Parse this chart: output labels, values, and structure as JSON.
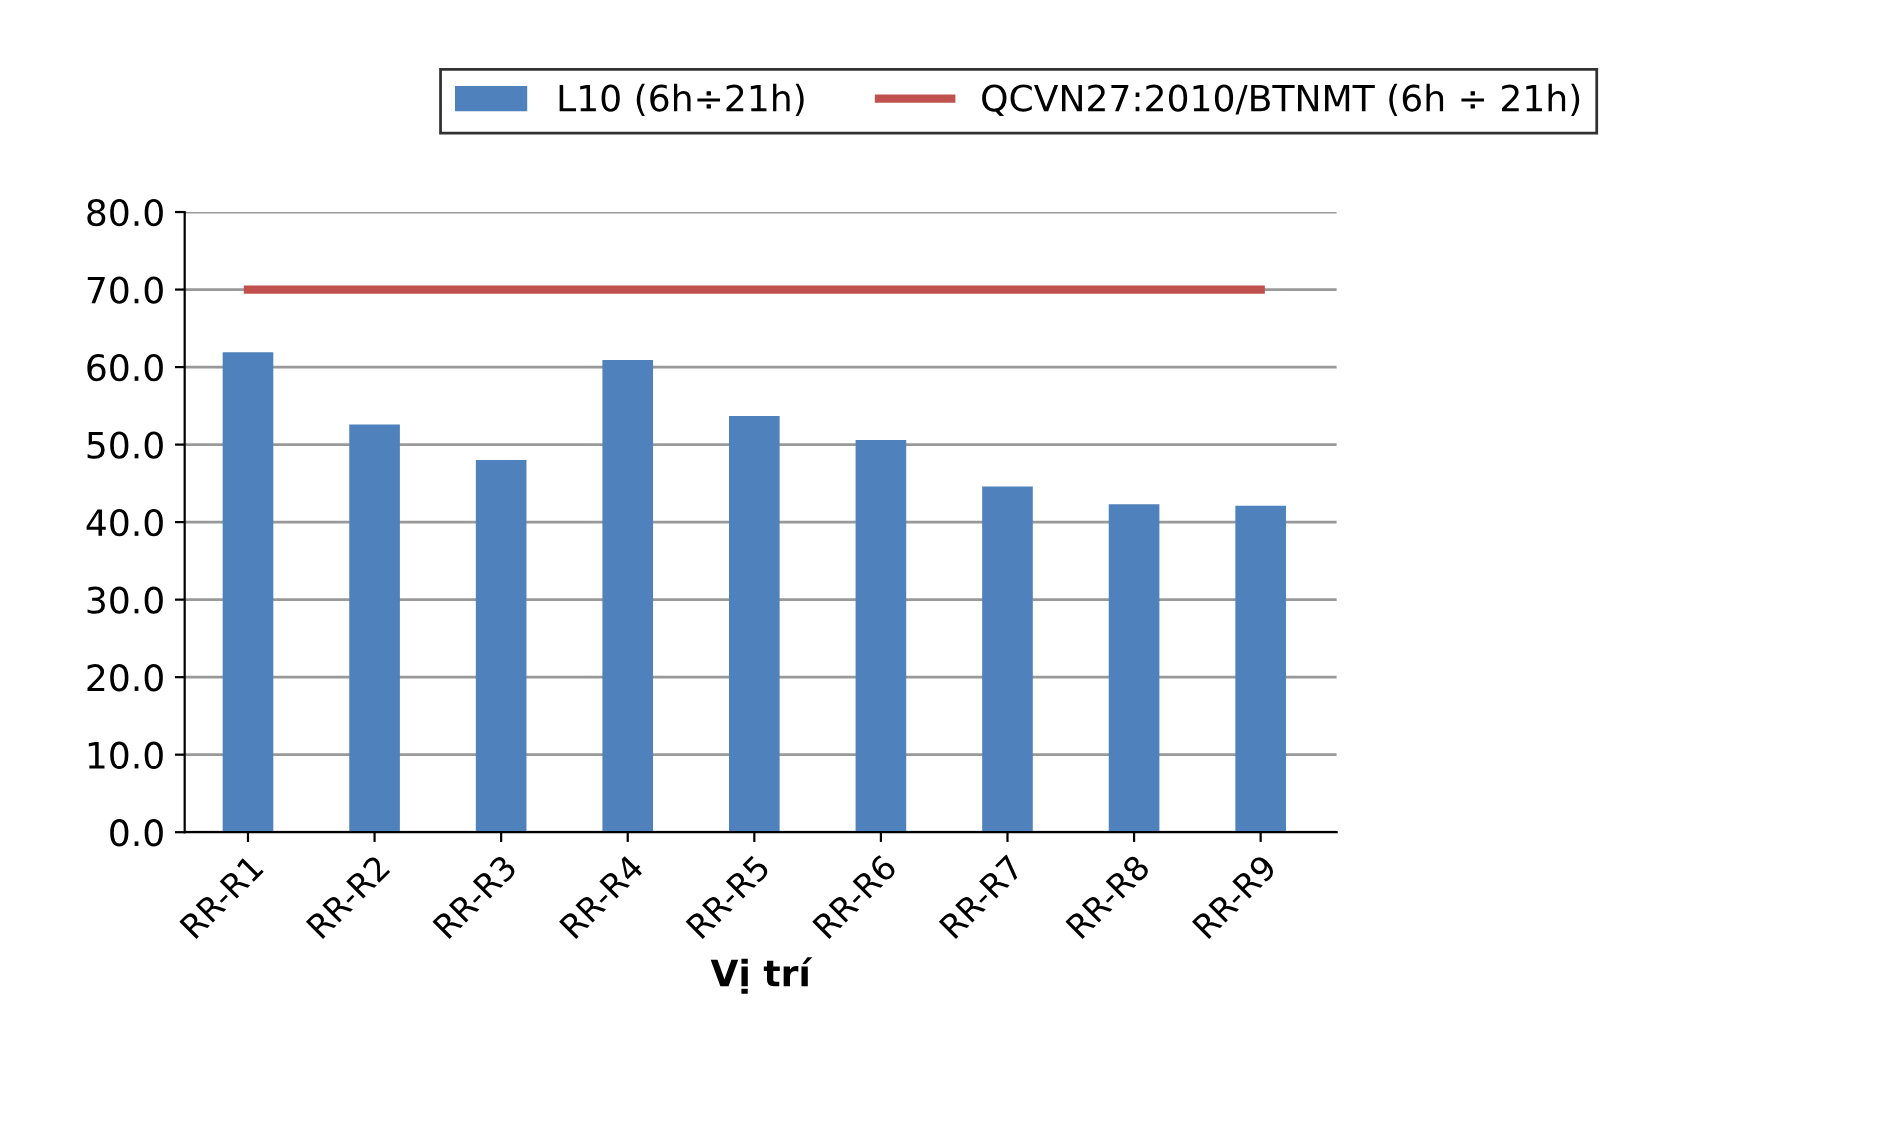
{
  "chart_data": {
    "type": "bar",
    "xlabel": "Vị trí",
    "categories": [
      "RR-R1",
      "RR-R2",
      "RR-R3",
      "RR-R4",
      "RR-R5",
      "RR-R6",
      "RR-R7",
      "RR-R8",
      "RR-R9"
    ],
    "series": [
      {
        "name": "L10 (6h÷21h)",
        "color": "#4f81bd",
        "values": [
          61.9,
          52.6,
          48.0,
          60.9,
          53.7,
          50.6,
          44.6,
          42.3,
          42.1
        ]
      },
      {
        "name": "QCVN27:2010/BTNMT (6h ÷ 21h)",
        "type": "line",
        "color": "#c0504d",
        "values": [
          70,
          70,
          70,
          70,
          70,
          70,
          70,
          70,
          70
        ]
      }
    ],
    "ylim": [
      0,
      80
    ],
    "yticks": [
      {
        "value": 0,
        "label": "0.0"
      },
      {
        "value": 10,
        "label": "10.0"
      },
      {
        "value": 20,
        "label": "20.0"
      },
      {
        "value": 30,
        "label": "30.0"
      },
      {
        "value": 40,
        "label": "40.0"
      },
      {
        "value": 50,
        "label": "50.0"
      },
      {
        "value": 60,
        "label": "60.0"
      },
      {
        "value": 70,
        "label": "70.0"
      },
      {
        "value": 80,
        "label": "80.0"
      }
    ],
    "grid": "y",
    "legend": "top"
  }
}
